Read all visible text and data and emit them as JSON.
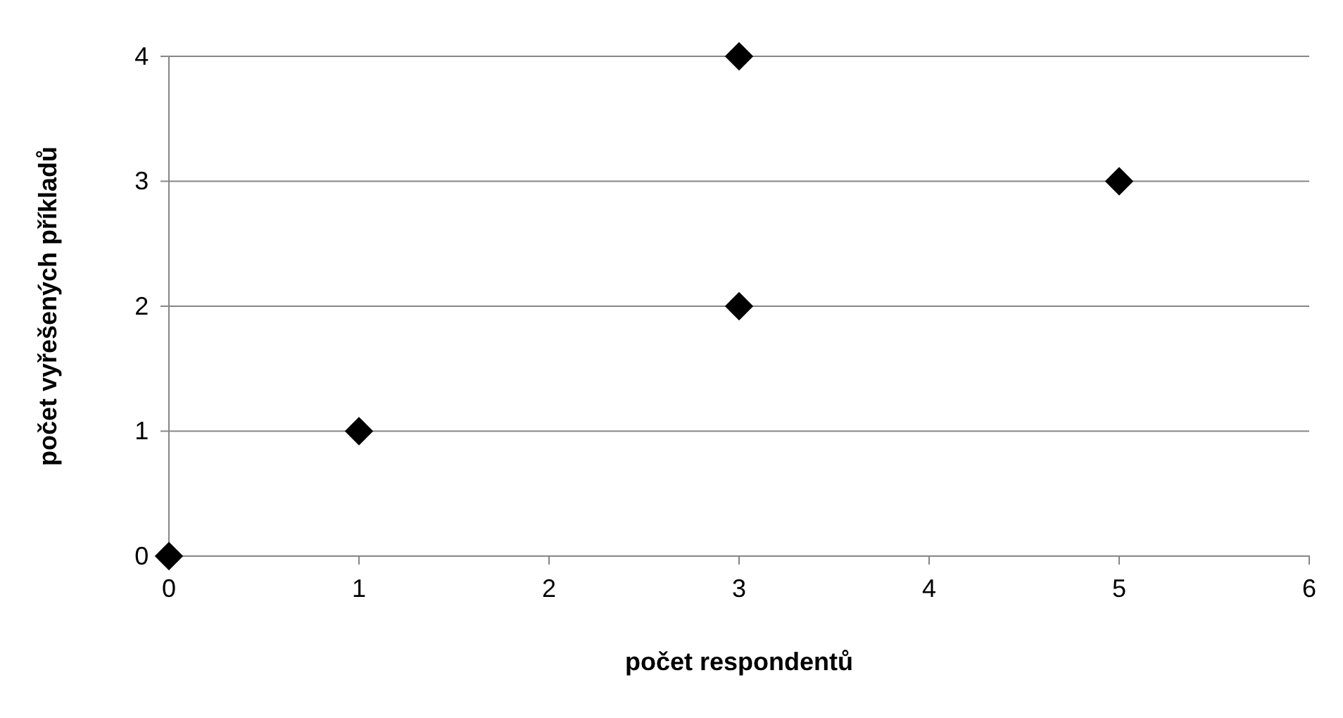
{
  "chart_data": {
    "type": "scatter",
    "xlabel": "počet respondentů",
    "ylabel": "počet vyřešených příkladů",
    "x": [
      0,
      1,
      3,
      3,
      5
    ],
    "series": [
      {
        "color": "#000000",
        "values": [
          0,
          1,
          2,
          4,
          3
        ]
      }
    ],
    "xlim": [
      0,
      6
    ],
    "xticks": [
      0,
      1,
      2,
      3,
      4,
      5,
      6
    ],
    "ylim": [
      0,
      4
    ],
    "yticks": [
      0,
      1,
      2,
      3,
      4
    ],
    "grid": "y",
    "marker": "diamond"
  }
}
